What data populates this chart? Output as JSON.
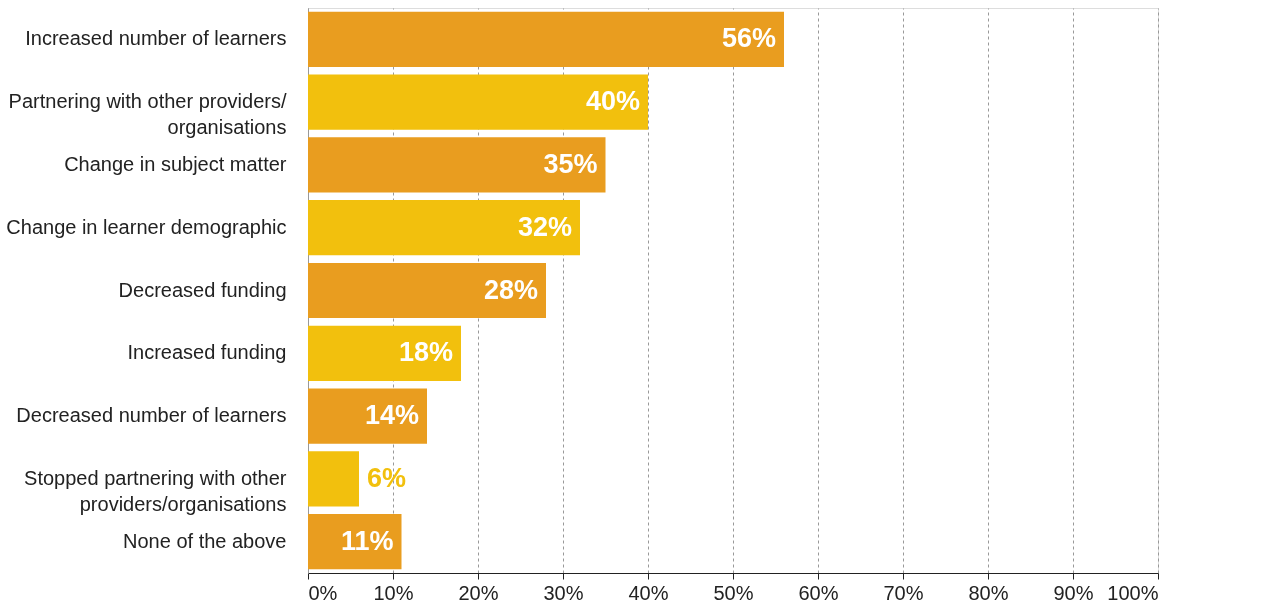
{
  "chart_data": {
    "type": "bar",
    "orientation": "horizontal",
    "categories": [
      "Increased number of learners",
      "Partnering with other providers/\norganisations",
      "Change in subject matter",
      "Change in learner demographic",
      "Decreased funding",
      "Increased funding",
      "Decreased number of learners",
      "Stopped partnering with other\nproviders/organisations",
      "None of the above"
    ],
    "values": [
      56,
      40,
      35,
      32,
      28,
      18,
      14,
      6,
      11
    ],
    "colors": [
      "#e99d1f",
      "#f2c00d",
      "#e99d1f",
      "#f2c00d",
      "#e99d1f",
      "#f2c00d",
      "#e99d1f",
      "#f2c00d",
      "#e99d1f"
    ],
    "value_labels": [
      "56%",
      "40%",
      "35%",
      "32%",
      "28%",
      "18%",
      "14%",
      "6%",
      "11%"
    ],
    "xlim": [
      0,
      100
    ],
    "xticks": [
      {
        "value": 0,
        "label": "0%"
      },
      {
        "value": 10,
        "label": "10%"
      },
      {
        "value": 20,
        "label": "20%"
      },
      {
        "value": 30,
        "label": "30%"
      },
      {
        "value": 40,
        "label": "40%"
      },
      {
        "value": 50,
        "label": "50%"
      },
      {
        "value": 60,
        "label": "60%"
      },
      {
        "value": 70,
        "label": "70%"
      },
      {
        "value": 80,
        "label": "80%"
      },
      {
        "value": 90,
        "label": "90%"
      },
      {
        "value": 100,
        "label": "100%"
      }
    ],
    "grid": "x",
    "legend": false
  }
}
